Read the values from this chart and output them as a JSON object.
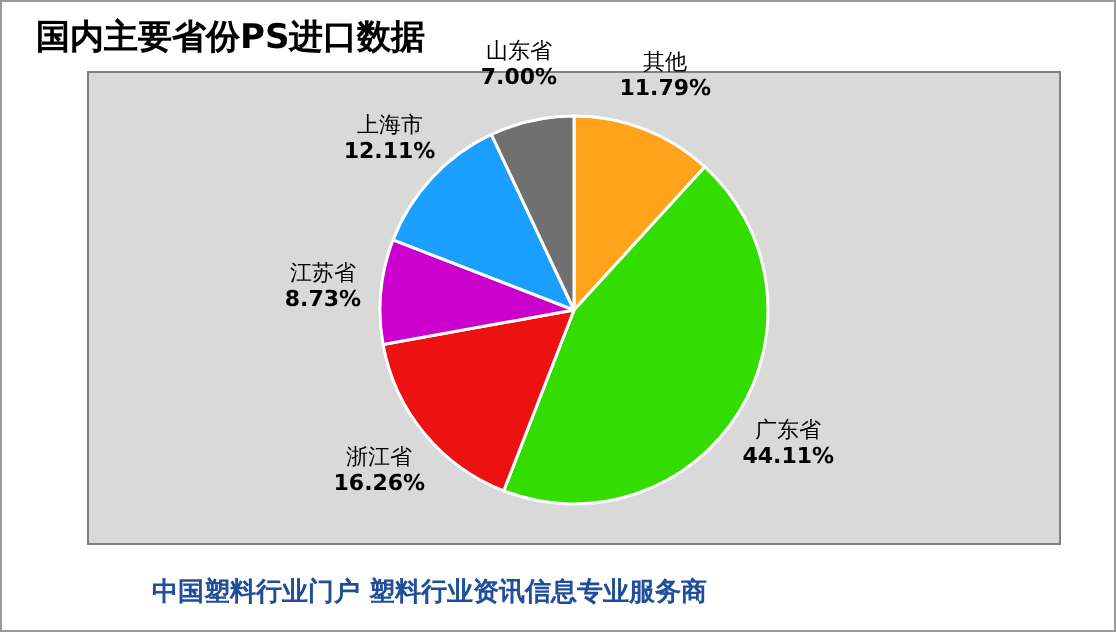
{
  "chart_data": {
    "type": "pie",
    "title": "国内主要省份PS进口数据",
    "categories": [
      "其他",
      "广东省",
      "浙江省",
      "江苏省",
      "上海市",
      "山东省"
    ],
    "values": [
      11.79,
      44.11,
      16.26,
      8.73,
      12.11,
      7.0
    ],
    "value_labels": [
      "11.79%",
      "44.11%",
      "16.26%",
      "8.73%",
      "12.11%",
      "7.00%"
    ],
    "colors": [
      "#ffa31a",
      "#33dd00",
      "#ee1111",
      "#cc00cc",
      "#1a9fff",
      "#707070"
    ],
    "annotations": [
      "中国塑料行业门户 塑料行业资讯信息专业服务商"
    ]
  }
}
